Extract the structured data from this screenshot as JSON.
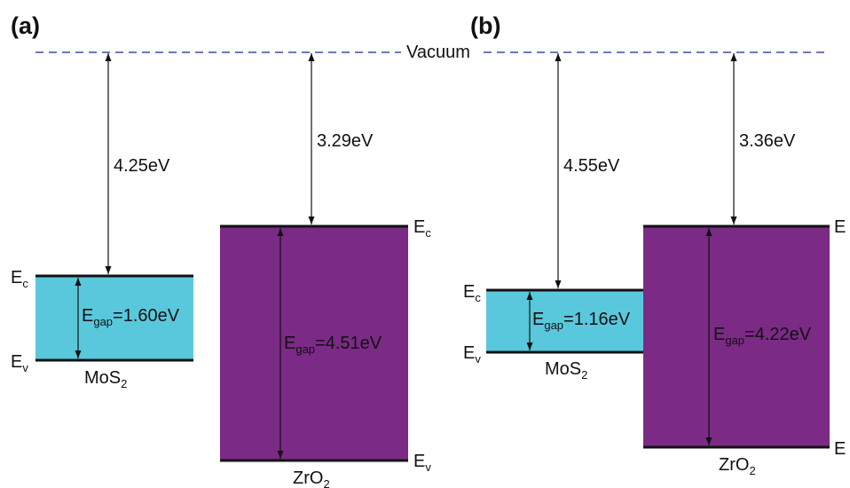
{
  "colors": {
    "mos2_fill": "#5ac8dc",
    "zro2_fill": "#7b2a86",
    "vacuum_line": "#3a4fa0",
    "ink": "#111111"
  },
  "vacuum_label": "Vacuum",
  "panels": [
    {
      "label": "(a)",
      "mos2": {
        "name_main": "MoS",
        "name_sub": "2",
        "electron_affinity": "4.25eV",
        "gap_prefix": "E",
        "gap_sub": "gap",
        "gap_value": "=1.60eV",
        "ec_main": "E",
        "ec_sub": "c",
        "ev_main": "E",
        "ev_sub": "v"
      },
      "zro2": {
        "name_main": "ZrO",
        "name_sub": "2",
        "electron_affinity": "3.29eV",
        "gap_prefix": "E",
        "gap_sub": "gap",
        "gap_value": "=4.51eV",
        "ec_main": "E",
        "ec_sub": "c",
        "ev_main": "E",
        "ev_sub": "v"
      }
    },
    {
      "label": "(b)",
      "mos2": {
        "name_main": "MoS",
        "name_sub": "2",
        "electron_affinity": "4.55eV",
        "gap_prefix": "E",
        "gap_sub": "gap",
        "gap_value": "=1.16eV",
        "ec_main": "E",
        "ec_sub": "c",
        "ev_main": "E",
        "ev_sub": "v"
      },
      "zro2": {
        "name_main": "ZrO",
        "name_sub": "2",
        "electron_affinity": "3.36eV",
        "gap_prefix": "E",
        "gap_sub": "gap",
        "gap_value": "=4.22eV",
        "ec_main": "E",
        "ev_main": "E"
      }
    }
  ]
}
